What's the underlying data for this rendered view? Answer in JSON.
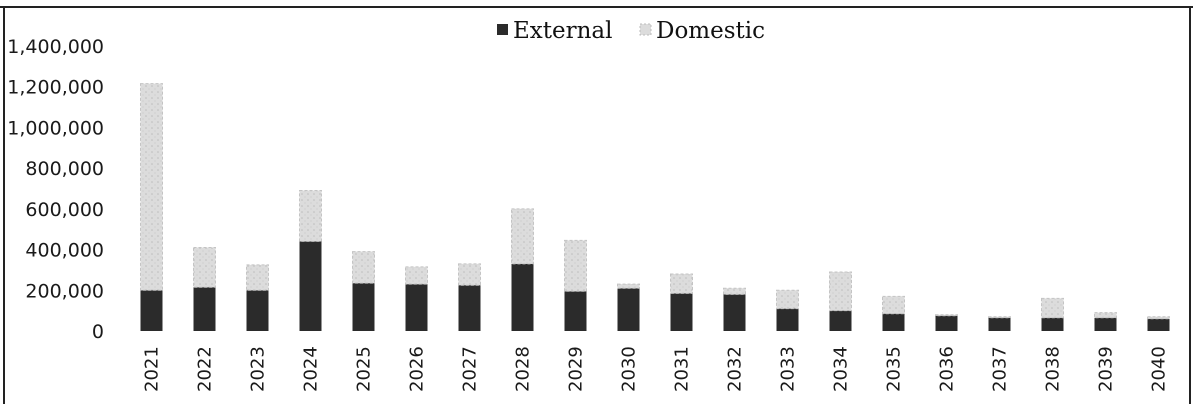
{
  "chart_data": {
    "type": "bar",
    "stacked": true,
    "title": "",
    "xlabel": "",
    "ylabel": "",
    "ylim": [
      0,
      1400000
    ],
    "yticks": [
      "1,400,000",
      "1,200,000",
      "1,000,000",
      "800,000",
      "600,000",
      "400,000",
      "200,000",
      "0"
    ],
    "categories": [
      "2021",
      "2022",
      "2023",
      "2024",
      "2025",
      "2026",
      "2027",
      "2028",
      "2029",
      "2030",
      "2031",
      "2032",
      "2033",
      "2034",
      "2035",
      "2036",
      "2037",
      "2038",
      "2039",
      "2040"
    ],
    "series": [
      {
        "name": "External",
        "color": "#2b2b2b",
        "values": [
          200000,
          215000,
          200000,
          440000,
          235000,
          230000,
          225000,
          330000,
          195000,
          210000,
          185000,
          180000,
          110000,
          100000,
          85000,
          75000,
          65000,
          65000,
          65000,
          60000
        ]
      },
      {
        "name": "Domestic",
        "color": "#dcdcdc",
        "values": [
          1015000,
          195000,
          125000,
          250000,
          155000,
          85000,
          105000,
          270000,
          250000,
          20000,
          95000,
          30000,
          90000,
          190000,
          85000,
          5000,
          5000,
          95000,
          25000,
          10000
        ]
      }
    ],
    "legend_position": "top-center",
    "grid": false
  }
}
